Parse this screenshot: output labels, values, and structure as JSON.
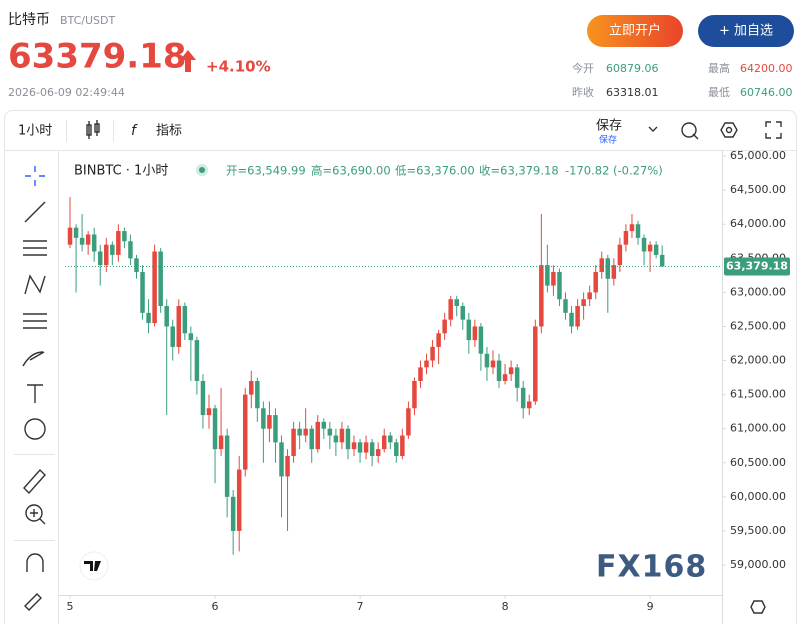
{
  "header": {
    "name": "比特币",
    "pair": "BTC/USDT",
    "price": "63379.18",
    "change": "+4.10%",
    "time": "2026-06-09 02:49:44",
    "buttons": [
      "立即开户",
      "+ 加自选"
    ],
    "stats": [
      {
        "label": "今开",
        "value": "60879.06"
      },
      {
        "label": "最高",
        "value": "64200.00"
      },
      {
        "label": "昨收",
        "value": "63318.01"
      },
      {
        "label": "最低",
        "value": "60746.00"
      }
    ]
  },
  "toolbar": {
    "interval": "1小时",
    "indicators": "指标",
    "save": "保存",
    "save_sub": "保存"
  },
  "watermark": "FX168",
  "chart_data": {
    "type": "candlestick",
    "title": "BINBTC · 1小时",
    "ohlc_legend": [
      "开=63,549.99",
      "高=63,690.00",
      "低=63,376.00",
      "收=63,379.18",
      "-170.82 (-0.27%)"
    ],
    "up_color": "#e5483f",
    "down_color": "#3a9e7c",
    "x": [
      0,
      1,
      2,
      3,
      4,
      5,
      6,
      7,
      8,
      9,
      10,
      11,
      12,
      13,
      14,
      15,
      16,
      17,
      18,
      19,
      20,
      21,
      22,
      23,
      24,
      25,
      26,
      27,
      28,
      29,
      30,
      31,
      32,
      33,
      34,
      35,
      36,
      37,
      38,
      39,
      40,
      41,
      42,
      43,
      44,
      45,
      46,
      47,
      48,
      49,
      50,
      51,
      52,
      53,
      54,
      55,
      56,
      57,
      58,
      59,
      60,
      61,
      62,
      63,
      64,
      65,
      66,
      67,
      68,
      69,
      70,
      71,
      72,
      73,
      74,
      75,
      76,
      77,
      78,
      79,
      80,
      81,
      82,
      83,
      84,
      85,
      86,
      87,
      88,
      89,
      90,
      91,
      92,
      93,
      94,
      95,
      96,
      97,
      98
    ],
    "open": [
      63700,
      63950,
      63800,
      63700,
      63850,
      63600,
      63400,
      63700,
      63550,
      63900,
      63750,
      63500,
      63300,
      62700,
      62550,
      63600,
      62800,
      62500,
      62200,
      62800,
      62400,
      62300,
      61700,
      61200,
      61300,
      60700,
      60900,
      60000,
      59500,
      60400,
      61500,
      61700,
      61300,
      61000,
      61200,
      60800,
      60300,
      60600,
      61000,
      60900,
      61000,
      60700,
      61100,
      61000,
      60900,
      60800,
      61000,
      60700,
      60800,
      60650,
      60800,
      60600,
      60700,
      60900,
      60800,
      60600,
      60900,
      61300,
      61700,
      61900,
      62000,
      62200,
      62400,
      62600,
      62900,
      62800,
      62600,
      62300,
      62500,
      62100,
      61900,
      62000,
      61700,
      61800,
      61900,
      61600,
      61300,
      61400,
      62500,
      63400,
      63100,
      63300,
      62900,
      62700,
      62500,
      62800,
      62900,
      63000,
      63300,
      63500,
      63200,
      63400,
      63700,
      63900,
      64000,
      63800,
      63600,
      63700,
      63549.99
    ],
    "high": [
      64400,
      64000,
      64150,
      63900,
      63950,
      63700,
      63800,
      63750,
      64000,
      63950,
      63850,
      63550,
      63400,
      62900,
      63700,
      63650,
      62900,
      62600,
      62900,
      62850,
      62500,
      62350,
      61800,
      61500,
      61350,
      61600,
      61000,
      60100,
      60600,
      61600,
      61850,
      61750,
      61400,
      61400,
      61300,
      60900,
      60700,
      61100,
      61100,
      61300,
      61050,
      61200,
      61150,
      61100,
      61000,
      61100,
      61050,
      60900,
      60850,
      60900,
      60850,
      60800,
      61000,
      60950,
      60850,
      61000,
      61400,
      61750,
      62000,
      62100,
      62300,
      62450,
      62700,
      62950,
      62950,
      62850,
      62700,
      62600,
      62550,
      62200,
      62150,
      62100,
      61950,
      62000,
      61950,
      61700,
      61500,
      62600,
      64150,
      63700,
      63400,
      63350,
      63000,
      62800,
      62900,
      63000,
      63100,
      63400,
      63600,
      63550,
      63500,
      63800,
      64000,
      64150,
      64050,
      63850,
      63750,
      63750,
      63690
    ],
    "low": [
      63650,
      63000,
      63600,
      63550,
      63450,
      63100,
      63300,
      63400,
      63450,
      63650,
      63400,
      63200,
      62600,
      62400,
      62500,
      62700,
      61200,
      62000,
      62100,
      62300,
      61700,
      61500,
      61000,
      61000,
      60200,
      60600,
      59700,
      59150,
      59200,
      60300,
      61300,
      61100,
      60500,
      60800,
      60500,
      59700,
      59500,
      60500,
      60700,
      60800,
      60500,
      60650,
      60850,
      60700,
      60600,
      60700,
      60550,
      60600,
      60500,
      60550,
      60450,
      60500,
      60650,
      60700,
      60500,
      60550,
      60850,
      61200,
      61600,
      61800,
      61900,
      61950,
      62300,
      62500,
      62650,
      62450,
      62100,
      62200,
      61850,
      61700,
      61800,
      61600,
      61650,
      61700,
      61400,
      61150,
      61200,
      61350,
      62400,
      63000,
      62950,
      62800,
      62600,
      62400,
      62450,
      62600,
      62800,
      62900,
      63200,
      62700,
      63100,
      63300,
      63600,
      63800,
      63700,
      63400,
      63300,
      63500,
      63376
    ],
    "close": [
      63950,
      63800,
      63700,
      63850,
      63600,
      63400,
      63700,
      63550,
      63900,
      63750,
      63500,
      63300,
      62700,
      62550,
      63600,
      62800,
      62500,
      62200,
      62800,
      62400,
      62300,
      61700,
      61200,
      61300,
      60700,
      60900,
      60000,
      59500,
      60400,
      61500,
      61700,
      61300,
      61000,
      61200,
      60800,
      60300,
      60600,
      61000,
      60900,
      61000,
      60700,
      61100,
      61000,
      60900,
      60800,
      61000,
      60700,
      60800,
      60650,
      60800,
      60600,
      60700,
      60900,
      60800,
      60600,
      60900,
      61300,
      61700,
      61900,
      62000,
      62200,
      62400,
      62600,
      62900,
      62800,
      62600,
      62300,
      62500,
      62100,
      61900,
      62000,
      61700,
      61800,
      61900,
      61600,
      61300,
      61400,
      62500,
      63400,
      63100,
      63300,
      62900,
      62700,
      62500,
      62800,
      62900,
      63000,
      63300,
      63500,
      63200,
      63400,
      63700,
      63900,
      64000,
      63800,
      63600,
      63700,
      63549.99,
      63379.18
    ],
    "last_price": {
      "value": 63379.18,
      "label": "63,379.18"
    },
    "xlim": [
      -0.83,
      107.9
    ],
    "xticks": [
      {
        "value": 0,
        "label": "5"
      },
      {
        "value": 24,
        "label": "6"
      },
      {
        "value": 48,
        "label": "7"
      },
      {
        "value": 72,
        "label": "8"
      },
      {
        "value": 96,
        "label": "9"
      }
    ],
    "ylim": [
      58560,
      65060
    ],
    "yticks": [
      {
        "value": 59000,
        "label": "59,000.00"
      },
      {
        "value": 59500,
        "label": "59,500.00"
      },
      {
        "value": 60000,
        "label": "60,000.00"
      },
      {
        "value": 60500,
        "label": "60,500.00"
      },
      {
        "value": 61000,
        "label": "61,000.00"
      },
      {
        "value": 61500,
        "label": "61,500.00"
      },
      {
        "value": 62000,
        "label": "62,000.00"
      },
      {
        "value": 62500,
        "label": "62,500.00"
      },
      {
        "value": 63000,
        "label": "63,000.00"
      },
      {
        "value": 63500,
        "label": "63,500.00"
      },
      {
        "value": 64000,
        "label": "64,000.00"
      },
      {
        "value": 64500,
        "label": "64,500.00"
      },
      {
        "value": 65000,
        "label": "65,000.00"
      }
    ],
    "grid": false
  }
}
